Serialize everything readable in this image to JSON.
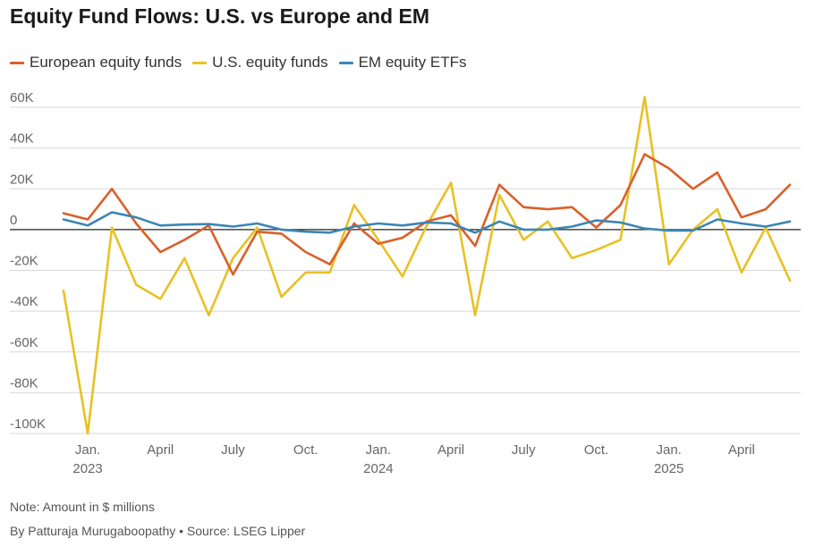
{
  "title": "Equity Fund Flows: U.S. vs Europe and EM",
  "colors": {
    "european": "#d9602b",
    "us": "#e8c124",
    "em": "#3b86b4",
    "grid": "#d8d8d8",
    "zero": "#222222"
  },
  "legend": [
    {
      "label": "European equity funds",
      "color": "#d9602b"
    },
    {
      "label": "U.S. equity funds",
      "color": "#e8c124"
    },
    {
      "label": "EM equity ETFs",
      "color": "#3b86b4"
    }
  ],
  "note": "Note: Amount in $ millions",
  "credit": "By Patturaja Murugaboopathy • Source: LSEG Lipper",
  "chart_data": {
    "type": "line",
    "x": [
      "2022-12",
      "2023-01",
      "2023-02",
      "2023-03",
      "2023-04",
      "2023-05",
      "2023-06",
      "2023-07",
      "2023-08",
      "2023-09",
      "2023-10",
      "2023-11",
      "2023-12",
      "2024-01",
      "2024-02",
      "2024-03",
      "2024-04",
      "2024-05",
      "2024-06",
      "2024-07",
      "2024-08",
      "2024-09",
      "2024-10",
      "2024-11",
      "2024-12",
      "2025-01",
      "2025-02",
      "2025-03",
      "2025-04",
      "2025-05",
      "2025-06"
    ],
    "x_tick_labels": [
      {
        "x": "2023-01",
        "line1": "Jan.",
        "line2": "2023"
      },
      {
        "x": "2023-04",
        "line1": "April",
        "line2": ""
      },
      {
        "x": "2023-07",
        "line1": "July",
        "line2": ""
      },
      {
        "x": "2023-10",
        "line1": "Oct.",
        "line2": ""
      },
      {
        "x": "2024-01",
        "line1": "Jan.",
        "line2": "2024"
      },
      {
        "x": "2024-04",
        "line1": "April",
        "line2": ""
      },
      {
        "x": "2024-07",
        "line1": "July",
        "line2": ""
      },
      {
        "x": "2024-10",
        "line1": "Oct.",
        "line2": ""
      },
      {
        "x": "2025-01",
        "line1": "Jan.",
        "line2": "2025"
      },
      {
        "x": "2025-04",
        "line1": "April",
        "line2": ""
      }
    ],
    "y_ticks": [
      60000,
      40000,
      20000,
      0,
      -20000,
      -40000,
      -60000,
      -80000,
      -100000
    ],
    "y_tick_labels": [
      "60K",
      "40K",
      "20K",
      "0",
      "-20K",
      "-40K",
      "-60K",
      "-80K",
      "-100K"
    ],
    "ylim": [
      -101000,
      66000
    ],
    "grid": true,
    "legend_position": "top-left",
    "series": [
      {
        "name": "European equity funds",
        "color": "#d9602b",
        "values": [
          8000,
          5000,
          20000,
          3000,
          -11000,
          -5000,
          2000,
          -22000,
          -1000,
          -2000,
          -11000,
          -17000,
          3000,
          -7000,
          -4000,
          4000,
          7000,
          -8000,
          22000,
          11000,
          10000,
          11000,
          1000,
          12000,
          37000,
          30000,
          20000,
          28000,
          6000,
          10000,
          22000
        ]
      },
      {
        "name": "U.S. equity funds",
        "color": "#e8c124",
        "values": [
          -30000,
          -100000,
          1000,
          -27000,
          -34000,
          -14000,
          -42000,
          -14000,
          1000,
          -33000,
          -21000,
          -21000,
          12000,
          -5000,
          -23000,
          2000,
          23000,
          -42000,
          17000,
          -5000,
          4000,
          -14000,
          -10000,
          -5000,
          65000,
          -17000,
          0,
          10000,
          -21000,
          1000,
          -25000
        ]
      },
      {
        "name": "EM equity ETFs",
        "color": "#3b86b4",
        "values": [
          5000,
          2000,
          8500,
          6000,
          2000,
          2500,
          2700,
          1500,
          3000,
          0,
          -1000,
          -1500,
          1500,
          3000,
          2000,
          3500,
          3000,
          -1500,
          4000,
          0,
          0,
          1500,
          4500,
          3500,
          500,
          -500,
          -500,
          5000,
          3000,
          1500,
          4000
        ]
      }
    ]
  }
}
